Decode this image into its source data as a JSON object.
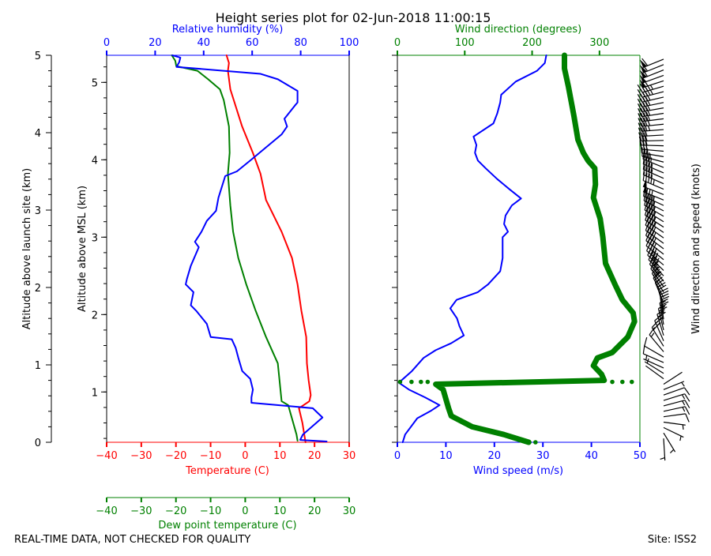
{
  "title": "Height series plot for 02-Jun-2018 11:00:15",
  "footer_left": "REAL-TIME DATA, NOT CHECKED FOR QUALITY",
  "footer_right": "Site: ISS2",
  "colors": {
    "temperature": "#ff0000",
    "dewpoint": "#008000",
    "rh": "#0000ff",
    "wind_speed": "#0000ff",
    "wind_direction": "#008000",
    "barbs": "#000000"
  },
  "chart_data": [
    {
      "type": "line",
      "panel": "thermo",
      "ylabel_outer": "Altitude above launch site (km)",
      "ylabel_inner": "Altitude above MSL (km)",
      "ylim": [
        0,
        5
      ],
      "msl_ylim": [
        0.35,
        5.35
      ],
      "yticks": [
        "0",
        "1",
        "2",
        "3",
        "4",
        "5"
      ],
      "msl_yticks": [
        "1",
        "2",
        "3",
        "4",
        "5"
      ],
      "x_bottom": {
        "label": "Temperature (C)",
        "range": [
          -40,
          30
        ],
        "ticks": [
          "−40",
          "−30",
          "−20",
          "−10",
          "0",
          "10",
          "20",
          "30"
        ]
      },
      "x_dew": {
        "label": "Dew point temperature (C)",
        "range": [
          -40,
          30
        ],
        "ticks": [
          "−40",
          "−30",
          "−20",
          "−10",
          "0",
          "10",
          "20",
          "30"
        ]
      },
      "x_top": {
        "label": "Relative humidity (%)",
        "range": [
          0,
          100
        ],
        "ticks": [
          "0",
          "20",
          "40",
          "60",
          "80",
          "100"
        ]
      },
      "series": [
        {
          "name": "Temperature (C)",
          "key": "temperature",
          "axis": "x_bottom",
          "points": [
            [
              17.4,
              0.0
            ],
            [
              16.5,
              0.25
            ],
            [
              15.5,
              0.44
            ],
            [
              18.5,
              0.53
            ],
            [
              18.9,
              0.61
            ],
            [
              18.3,
              0.8
            ],
            [
              17.8,
              1.02
            ],
            [
              17.6,
              1.36
            ],
            [
              16.2,
              1.7
            ],
            [
              15.1,
              2.04
            ],
            [
              13.5,
              2.38
            ],
            [
              10.5,
              2.72
            ],
            [
              6.0,
              3.13
            ],
            [
              4.4,
              3.47
            ],
            [
              2.2,
              3.74
            ],
            [
              -0.9,
              4.08
            ],
            [
              -4.3,
              4.56
            ],
            [
              -5.0,
              4.8
            ],
            [
              -4.7,
              4.9
            ],
            [
              -5.4,
              5.0
            ]
          ]
        },
        {
          "name": "Dew point temperature (C)",
          "key": "dewpoint",
          "axis": "x_dew",
          "points": [
            [
              15.1,
              0.02
            ],
            [
              14.8,
              0.1
            ],
            [
              12.4,
              0.48
            ],
            [
              10.5,
              0.53
            ],
            [
              9.4,
              1.02
            ],
            [
              6.0,
              1.36
            ],
            [
              3.0,
              1.7
            ],
            [
              0.3,
              2.04
            ],
            [
              -2.0,
              2.38
            ],
            [
              -3.5,
              2.72
            ],
            [
              -4.3,
              3.06
            ],
            [
              -5.0,
              3.47
            ],
            [
              -4.5,
              3.74
            ],
            [
              -4.7,
              4.08
            ],
            [
              -6.2,
              4.42
            ],
            [
              -7.3,
              4.56
            ],
            [
              -10.7,
              4.69
            ],
            [
              -13.8,
              4.8
            ],
            [
              -19.9,
              4.86
            ],
            [
              -20.2,
              4.93
            ],
            [
              -21.2,
              5.0
            ]
          ]
        },
        {
          "name": "Relative humidity (%)",
          "key": "rh",
          "axis": "x_top",
          "points": [
            [
              90.7,
              0.01
            ],
            [
              79.8,
              0.03
            ],
            [
              80.9,
              0.1
            ],
            [
              89,
              0.32
            ],
            [
              85,
              0.44
            ],
            [
              59.7,
              0.51
            ],
            [
              59.7,
              0.58
            ],
            [
              60.3,
              0.68
            ],
            [
              59.2,
              0.82
            ],
            [
              55.9,
              0.92
            ],
            [
              54.3,
              1.09
            ],
            [
              53.2,
              1.22
            ],
            [
              51.6,
              1.33
            ],
            [
              42.9,
              1.36
            ],
            [
              41.3,
              1.53
            ],
            [
              36.9,
              1.7
            ],
            [
              34.7,
              1.77
            ],
            [
              35.8,
              1.94
            ],
            [
              32.6,
              2.04
            ],
            [
              33.1,
              2.11
            ],
            [
              34.7,
              2.28
            ],
            [
              38.0,
              2.52
            ],
            [
              36.4,
              2.59
            ],
            [
              39.1,
              2.72
            ],
            [
              41.3,
              2.86
            ],
            [
              45.1,
              2.99
            ],
            [
              46.1,
              3.16
            ],
            [
              48.9,
              3.44
            ],
            [
              53.7,
              3.5
            ],
            [
              59.2,
              3.64
            ],
            [
              65.7,
              3.81
            ],
            [
              72.2,
              3.98
            ],
            [
              74.4,
              4.08
            ],
            [
              73.3,
              4.18
            ],
            [
              77.6,
              4.35
            ],
            [
              78.7,
              4.39
            ],
            [
              78.7,
              4.54
            ],
            [
              70.6,
              4.69
            ],
            [
              63.5,
              4.76
            ],
            [
              28.8,
              4.85
            ],
            [
              29.9,
              4.91
            ],
            [
              30.4,
              4.97
            ],
            [
              27.1,
              5.0
            ]
          ]
        }
      ]
    },
    {
      "type": "line",
      "panel": "wind",
      "ylim": [
        0,
        5
      ],
      "x_bottom": {
        "label": "Wind speed (m/s)",
        "range": [
          0,
          50
        ],
        "ticks": [
          "0",
          "10",
          "20",
          "30",
          "40",
          "50"
        ]
      },
      "x_top": {
        "label": "Wind direction (degrees)",
        "range": [
          0,
          360
        ],
        "ticks": [
          "0",
          "100",
          "200",
          "300"
        ]
      },
      "barb_label": "Wind direction and speed (knots)",
      "series": [
        {
          "name": "Wind speed (m/s)",
          "key": "wind_speed",
          "axis": "x_bottom",
          "points": [
            [
              1.1,
              0.0
            ],
            [
              1.6,
              0.1
            ],
            [
              4.1,
              0.31
            ],
            [
              7.0,
              0.41
            ],
            [
              8.7,
              0.48
            ],
            [
              5.7,
              0.58
            ],
            [
              2.4,
              0.68
            ],
            [
              0.3,
              0.77
            ],
            [
              3.0,
              0.92
            ],
            [
              5.4,
              1.09
            ],
            [
              7.9,
              1.19
            ],
            [
              11.1,
              1.28
            ],
            [
              13.7,
              1.38
            ],
            [
              12.8,
              1.5
            ],
            [
              12.3,
              1.6
            ],
            [
              10.9,
              1.73
            ],
            [
              12.2,
              1.84
            ],
            [
              16.6,
              1.94
            ],
            [
              18.7,
              2.04
            ],
            [
              21.2,
              2.21
            ],
            [
              21.7,
              2.38
            ],
            [
              21.7,
              2.65
            ],
            [
              22.8,
              2.72
            ],
            [
              22.0,
              2.82
            ],
            [
              22.3,
              2.93
            ],
            [
              23.6,
              3.06
            ],
            [
              25.5,
              3.15
            ],
            [
              23.1,
              3.27
            ],
            [
              20.6,
              3.4
            ],
            [
              18.2,
              3.54
            ],
            [
              16.6,
              3.64
            ],
            [
              16.0,
              3.74
            ],
            [
              16.3,
              3.84
            ],
            [
              15.7,
              3.95
            ],
            [
              19.8,
              4.12
            ],
            [
              20.6,
              4.25
            ],
            [
              21.2,
              4.39
            ],
            [
              21.4,
              4.49
            ],
            [
              24.4,
              4.66
            ],
            [
              28.8,
              4.8
            ],
            [
              30.4,
              4.9
            ],
            [
              30.7,
              5.0
            ]
          ]
        },
        {
          "name": "Wind direction (degrees)",
          "key": "wind_direction",
          "axis": "x_top",
          "points": [
            [
              195,
              0.0
            ],
            [
              158,
              0.1
            ],
            [
              111,
              0.2
            ],
            [
              80,
              0.34
            ],
            [
              76,
              0.44
            ],
            [
              68,
              0.68
            ],
            [
              57,
              0.75
            ],
            [
              307,
              0.8
            ],
            [
              303,
              0.88
            ],
            [
              291,
              0.99
            ],
            [
              297,
              1.09
            ],
            [
              319,
              1.16
            ],
            [
              342,
              1.36
            ],
            [
              352,
              1.56
            ],
            [
              350,
              1.67
            ],
            [
              334,
              1.84
            ],
            [
              323,
              2.04
            ],
            [
              309,
              2.31
            ],
            [
              305,
              2.65
            ],
            [
              301,
              2.89
            ],
            [
              291,
              3.16
            ],
            [
              294,
              3.33
            ],
            [
              293,
              3.54
            ],
            [
              283,
              3.64
            ],
            [
              276,
              3.74
            ],
            [
              268,
              3.91
            ],
            [
              262,
              4.22
            ],
            [
              254,
              4.59
            ],
            [
              248,
              4.83
            ],
            [
              248,
              5.0
            ]
          ]
        },
        {
          "name": "Wind direction (degrees) sparse",
          "key": "wind_direction_dots",
          "axis": "x_top",
          "points": [
            [
              4,
              0.78
            ],
            [
              21,
              0.78
            ],
            [
              35,
              0.78
            ],
            [
              45,
              0.78
            ],
            [
              319,
              0.78
            ],
            [
              334,
              0.78
            ],
            [
              348,
              0.78
            ],
            [
              205,
              0.0
            ]
          ]
        }
      ]
    }
  ]
}
